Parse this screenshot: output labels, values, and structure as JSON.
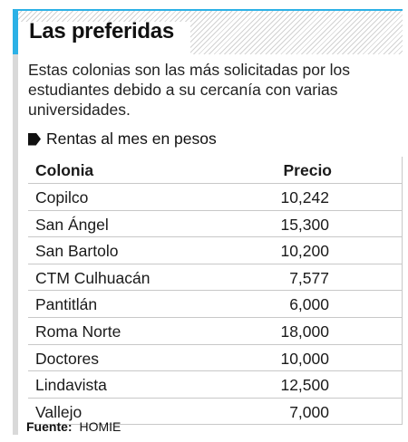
{
  "title": "Las preferidas",
  "intro": "Estas colonias son las más solicitadas por los estudiantes debido a su cercanía con varias universidades.",
  "subtitle": "Rentas al mes en pesos",
  "table": {
    "headers": {
      "colonia": "Colonia",
      "precio": "Precio"
    },
    "rows": [
      {
        "colonia": "Copilco",
        "precio": "10,242"
      },
      {
        "colonia": "San Ángel",
        "precio": "15,300"
      },
      {
        "colonia": "San Bartolo",
        "precio": "10,200"
      },
      {
        "colonia": "CTM Culhuacán",
        "precio": "7,577"
      },
      {
        "colonia": "Pantitlán",
        "precio": "6,000"
      },
      {
        "colonia": "Roma Norte",
        "precio": "18,000"
      },
      {
        "colonia": "Doctores",
        "precio": "10,000"
      },
      {
        "colonia": "Lindavista",
        "precio": "12,500"
      },
      {
        "colonia": "Vallejo",
        "precio": "7,000"
      }
    ]
  },
  "source": {
    "label": "Fuente:",
    "value": "HOMIE"
  },
  "colors": {
    "accent": "#2cb1e6",
    "rule": "#d9d9d9"
  }
}
